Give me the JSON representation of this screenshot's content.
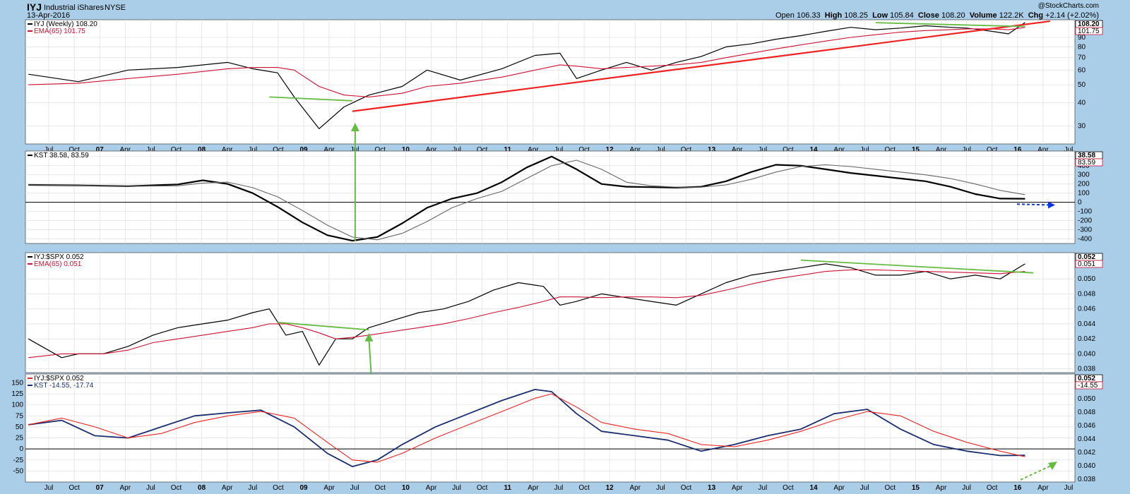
{
  "header": {
    "symbol": "IYJ",
    "name": "Industrial iShares",
    "exchange": "NYSE",
    "date": "13-Apr-2016",
    "open_label": "Open",
    "open": "106.33",
    "high_label": "High",
    "high": "108.25",
    "low_label": "Low",
    "low": "105.84",
    "close_label": "Close",
    "close": "108.20",
    "volume_label": "Volume",
    "volume": "122.2K",
    "chg_label": "Chg",
    "chg": "+2.14 (+2.02%)",
    "brand": "@StockCharts.com"
  },
  "x_axis_labels": [
    "Jul",
    "Oct",
    "07",
    "Apr",
    "Jul",
    "Oct",
    "08",
    "Apr",
    "Jul",
    "Oct",
    "09",
    "Apr",
    "Jul",
    "Oct",
    "10",
    "Apr",
    "Jul",
    "Oct",
    "11",
    "Apr",
    "Jul",
    "Oct",
    "12",
    "Apr",
    "Jul",
    "Oct",
    "13",
    "Apr",
    "Jul",
    "Oct",
    "14",
    "Apr",
    "Jul",
    "Oct",
    "15",
    "Apr",
    "Jul",
    "Oct",
    "16",
    "Apr",
    "Jul"
  ],
  "colors": {
    "background": "#aacde8",
    "panel": "#ffffff",
    "price": "#000000",
    "ema": "#cc1133",
    "trend_red": "#ee2222",
    "trend_green": "#66bb44",
    "kst": "#000000",
    "kst_signal": "#666666",
    "rs_kst": "#1a2e6e",
    "rs_kst_signal": "#ee2222",
    "arrow_blue": "#1133dd"
  },
  "chart_data": [
    {
      "type": "line",
      "title": "IYJ (Weekly) 108.20",
      "legend": [
        {
          "name": "IYJ (Weekly)",
          "value": "108.20"
        },
        {
          "name": "EMA(65)",
          "value": "101.75"
        }
      ],
      "y_scale": "log",
      "ylim": [
        24,
        112
      ],
      "y_ticks": [
        30,
        40,
        50,
        60,
        70,
        80,
        90
      ],
      "last_value_tags": [
        "108.20",
        "101.75"
      ],
      "x": [
        "2006-04",
        "2006-10",
        "2007-04",
        "2007-10",
        "2008-04",
        "2008-07",
        "2008-10",
        "2008-12",
        "2009-03",
        "2009-06",
        "2009-09",
        "2010-01",
        "2010-04",
        "2010-08",
        "2011-01",
        "2011-05",
        "2011-08",
        "2011-10",
        "2012-01",
        "2012-04",
        "2012-07",
        "2012-10",
        "2013-01",
        "2013-04",
        "2013-07",
        "2013-10",
        "2014-01",
        "2014-04",
        "2014-07",
        "2014-10",
        "2015-01",
        "2015-04",
        "2015-07",
        "2015-09",
        "2015-12",
        "2016-02",
        "2016-04"
      ],
      "series": [
        {
          "name": "IYJ (Weekly)",
          "values": [
            57,
            52,
            60,
            62,
            66,
            61,
            58,
            43,
            29,
            38,
            44,
            49,
            60,
            53,
            61,
            72,
            74,
            54,
            60,
            66,
            60,
            66,
            71,
            80,
            83,
            88,
            92,
            97,
            102,
            99,
            101,
            104,
            102,
            101,
            97,
            94,
            108.2
          ]
        },
        {
          "name": "EMA(65)",
          "values": [
            50,
            51,
            54,
            57,
            61,
            62,
            62,
            60,
            49,
            44,
            43,
            45,
            49,
            51,
            55,
            60,
            64,
            63,
            61,
            62,
            63,
            64,
            66,
            70,
            74,
            78,
            82,
            86,
            90,
            93,
            96,
            98,
            99,
            100,
            100,
            99,
            101.75
          ]
        }
      ],
      "annotations": [
        {
          "kind": "trendline",
          "color": "red",
          "from": [
            "2009-07",
            36
          ],
          "to": [
            "2016-07",
            110
          ]
        },
        {
          "kind": "trendline",
          "color": "green",
          "from": [
            "2008-09",
            43
          ],
          "to": [
            "2009-07",
            41
          ]
        },
        {
          "kind": "trendline",
          "color": "green",
          "from": [
            "2014-10",
            108
          ],
          "to": [
            "2016-04",
            103
          ]
        }
      ]
    },
    {
      "type": "line",
      "title": "KST 38.58, 83.59",
      "ylim": [
        -450,
        560
      ],
      "y_ticks": [
        -400,
        -300,
        -200,
        -100,
        0,
        100,
        200,
        300,
        400,
        500
      ],
      "last_value_tags": [
        "38.58",
        "83.59"
      ],
      "x": [
        "2006-04",
        "2006-10",
        "2007-04",
        "2007-10",
        "2008-01",
        "2008-04",
        "2008-07",
        "2008-10",
        "2009-01",
        "2009-04",
        "2009-07",
        "2009-10",
        "2010-01",
        "2010-04",
        "2010-07",
        "2010-10",
        "2011-01",
        "2011-04",
        "2011-07",
        "2011-10",
        "2012-01",
        "2012-04",
        "2012-07",
        "2012-10",
        "2013-01",
        "2013-04",
        "2013-07",
        "2013-10",
        "2014-01",
        "2014-04",
        "2014-07",
        "2014-10",
        "2015-01",
        "2015-04",
        "2015-07",
        "2015-10",
        "2016-01",
        "2016-04"
      ],
      "series": [
        {
          "name": "KST",
          "values": [
            190,
            185,
            175,
            195,
            240,
            200,
            100,
            -50,
            -220,
            -360,
            -420,
            -380,
            -230,
            -60,
            40,
            100,
            220,
            380,
            500,
            360,
            200,
            170,
            165,
            160,
            170,
            230,
            330,
            410,
            400,
            360,
            320,
            290,
            260,
            230,
            170,
            90,
            40,
            38.58
          ]
        },
        {
          "name": "Signal",
          "values": [
            190,
            185,
            175,
            180,
            210,
            220,
            160,
            60,
            -90,
            -250,
            -380,
            -410,
            -340,
            -210,
            -60,
            40,
            120,
            260,
            400,
            460,
            360,
            220,
            180,
            165,
            165,
            190,
            250,
            330,
            390,
            410,
            390,
            360,
            330,
            300,
            260,
            200,
            130,
            83.59
          ]
        }
      ],
      "annotations": [
        {
          "kind": "arrow",
          "color": "blue",
          "style": "dashed",
          "direction": "down-right"
        }
      ]
    },
    {
      "type": "line",
      "title": "IYJ:$SPX 0.052",
      "legend": [
        {
          "name": "IYJ:$SPX",
          "value": "0.052"
        },
        {
          "name": "EMA(65)",
          "value": "0.051"
        }
      ],
      "ylim": [
        0.0375,
        0.0535
      ],
      "y_ticks": [
        0.038,
        0.04,
        0.042,
        0.044,
        0.046,
        0.048,
        0.05
      ],
      "last_value_tags": [
        "0.052",
        "0.051"
      ],
      "x": [
        "2006-04",
        "2006-08",
        "2006-10",
        "2007-01",
        "2007-04",
        "2007-07",
        "2007-10",
        "2008-01",
        "2008-04",
        "2008-07",
        "2008-09",
        "2008-11",
        "2009-01",
        "2009-03",
        "2009-05",
        "2009-07",
        "2009-09",
        "2009-12",
        "2010-03",
        "2010-06",
        "2010-09",
        "2010-12",
        "2011-03",
        "2011-06",
        "2011-08",
        "2011-10",
        "2012-01",
        "2012-04",
        "2012-07",
        "2012-10",
        "2013-01",
        "2013-04",
        "2013-07",
        "2013-10",
        "2014-01",
        "2014-04",
        "2014-07",
        "2014-10",
        "2015-01",
        "2015-04",
        "2015-07",
        "2015-10",
        "2016-01",
        "2016-04"
      ],
      "series": [
        {
          "name": "IYJ:$SPX",
          "values": [
            0.042,
            0.0395,
            0.04,
            0.04,
            0.041,
            0.0425,
            0.0435,
            0.044,
            0.0445,
            0.0455,
            0.046,
            0.0425,
            0.043,
            0.0385,
            0.042,
            0.042,
            0.0435,
            0.0445,
            0.0455,
            0.046,
            0.047,
            0.0485,
            0.0495,
            0.049,
            0.0465,
            0.047,
            0.048,
            0.0475,
            0.047,
            0.0465,
            0.048,
            0.0495,
            0.0505,
            0.051,
            0.0515,
            0.052,
            0.0515,
            0.0505,
            0.0505,
            0.051,
            0.05,
            0.0505,
            0.05,
            0.052
          ]
        },
        {
          "name": "EMA(65)",
          "values": [
            0.0395,
            0.04,
            0.04,
            0.04,
            0.0405,
            0.0415,
            0.042,
            0.0425,
            0.043,
            0.0435,
            0.044,
            0.044,
            0.0435,
            0.0428,
            0.042,
            0.0422,
            0.0425,
            0.043,
            0.0435,
            0.044,
            0.0447,
            0.0455,
            0.0462,
            0.047,
            0.0476,
            0.0476,
            0.0475,
            0.0476,
            0.0476,
            0.0475,
            0.0478,
            0.0485,
            0.0493,
            0.05,
            0.0505,
            0.051,
            0.0512,
            0.0512,
            0.0511,
            0.051,
            0.0509,
            0.0508,
            0.0507,
            0.051
          ]
        }
      ],
      "annotations": [
        {
          "kind": "trendline",
          "color": "green",
          "from": [
            "2008-10",
            0.0442
          ],
          "to": [
            "2009-09",
            0.0432
          ]
        },
        {
          "kind": "trendline",
          "color": "green",
          "from": [
            "2014-01",
            0.0525
          ],
          "to": [
            "2016-05",
            0.0508
          ]
        },
        {
          "kind": "arrow",
          "color": "green",
          "direction": "up"
        }
      ]
    },
    {
      "type": "line",
      "title": "IYJ:$SPX 0.052",
      "legend": [
        {
          "name": "IYJ:$SPX",
          "value": "0.052"
        },
        {
          "name": "KST",
          "value": "-14.55, -17.74"
        }
      ],
      "ylim": [
        -75,
        170
      ],
      "y_ticks": [
        -50,
        -25,
        0,
        25,
        50,
        75,
        100,
        125,
        150
      ],
      "right_ticks": [
        "0.050",
        "0.048",
        "0.046",
        "0.044",
        "0.042",
        "0.040",
        "0.038"
      ],
      "last_value_tags": [
        "0.052",
        "-14.55"
      ],
      "x": [
        "2006-04",
        "2006-08",
        "2006-12",
        "2007-04",
        "2007-08",
        "2007-12",
        "2008-04",
        "2008-08",
        "2008-12",
        "2009-04",
        "2009-07",
        "2009-10",
        "2010-01",
        "2010-05",
        "2010-09",
        "2011-01",
        "2011-05",
        "2011-07",
        "2011-10",
        "2012-01",
        "2012-05",
        "2012-09",
        "2013-01",
        "2013-05",
        "2013-09",
        "2014-01",
        "2014-05",
        "2014-09",
        "2015-01",
        "2015-05",
        "2015-09",
        "2016-01",
        "2016-04"
      ],
      "series": [
        {
          "name": "KST",
          "values": [
            55,
            65,
            30,
            25,
            50,
            75,
            82,
            88,
            50,
            -10,
            -40,
            -25,
            10,
            50,
            80,
            110,
            135,
            130,
            80,
            40,
            30,
            20,
            -5,
            10,
            30,
            45,
            80,
            90,
            45,
            10,
            -5,
            -15,
            -14.55
          ]
        },
        {
          "name": "Signal",
          "values": [
            55,
            70,
            50,
            25,
            35,
            60,
            75,
            85,
            70,
            15,
            -25,
            -30,
            -10,
            25,
            55,
            85,
            115,
            125,
            95,
            60,
            45,
            35,
            10,
            5,
            20,
            40,
            65,
            85,
            75,
            40,
            15,
            -5,
            -17.74
          ]
        }
      ],
      "annotations": [
        {
          "kind": "arrow",
          "color": "green",
          "style": "dashed",
          "direction": "up-right"
        }
      ]
    }
  ]
}
